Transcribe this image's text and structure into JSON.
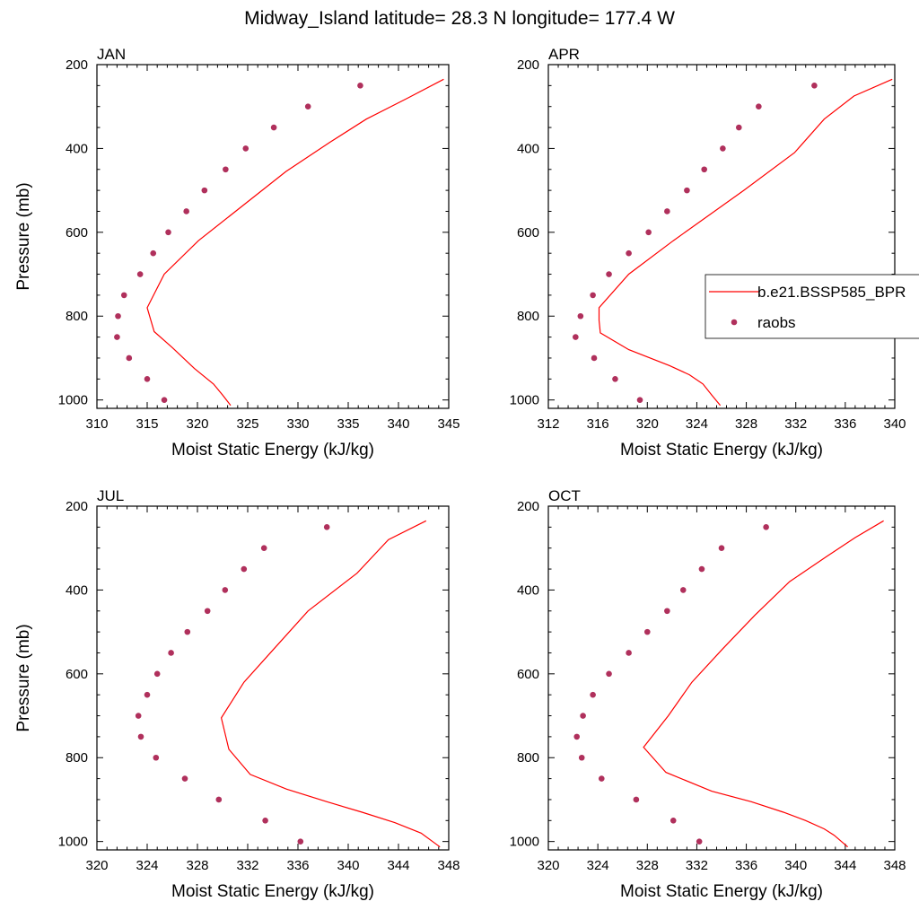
{
  "figure": {
    "title": "Midway_Island  latitude= 28.3 N longitude= 177.4 W"
  },
  "colors": {
    "model": "#ff0000",
    "obs": "#b0305c",
    "axes": "#000000"
  },
  "legend": {
    "placement": "right, inside APR panel (clipped at image edge)",
    "model_label": "b.e21.BSSP585_BPR",
    "obs_label": "raobs"
  },
  "chart_data": [
    {
      "type": "line",
      "panel_label": "JAN",
      "xlabel": "Moist Static Energy (kJ/kg)",
      "ylabel": "Pressure (mb)",
      "xlim": [
        310,
        345
      ],
      "xticks": [
        310,
        315,
        320,
        325,
        330,
        335,
        340,
        345
      ],
      "ylim": [
        1020,
        200
      ],
      "yticks": [
        200,
        400,
        600,
        800,
        1000
      ],
      "grid": false,
      "series": [
        {
          "name": "b.e21.BSSP585_BPR",
          "kind": "line",
          "x": [
            323.3,
            322.5,
            321.6,
            319.7,
            317.5,
            315.7,
            315.0,
            316.7,
            320.1,
            328.8,
            333.2,
            336.8,
            340.9,
            344.5
          ],
          "y": [
            1013,
            988,
            962,
            925,
            875,
            837,
            780,
            700,
            620,
            455,
            385,
            330,
            280,
            235
          ]
        },
        {
          "name": "raobs",
          "kind": "scatter",
          "x": [
            316.7,
            315.0,
            313.2,
            312.0,
            312.1,
            312.7,
            314.3,
            315.6,
            317.1,
            318.9,
            320.7,
            322.8,
            324.8,
            327.6,
            331.0,
            336.2
          ],
          "y": [
            1000,
            950,
            900,
            850,
            800,
            750,
            700,
            650,
            600,
            550,
            500,
            450,
            400,
            350,
            300,
            250
          ]
        }
      ]
    },
    {
      "type": "line",
      "panel_label": "APR",
      "xlabel": "Moist Static Energy (kJ/kg)",
      "ylabel": "",
      "xlim": [
        312,
        340
      ],
      "xticks": [
        312,
        316,
        320,
        324,
        328,
        332,
        336,
        340
      ],
      "ylim": [
        1020,
        200
      ],
      "yticks": [
        200,
        400,
        600,
        800,
        1000
      ],
      "grid": false,
      "series": [
        {
          "name": "b.e21.BSSP585_BPR",
          "kind": "line",
          "x": [
            325.9,
            325.2,
            324.5,
            323.4,
            321.8,
            318.5,
            316.2,
            316.1,
            316.1,
            318.5,
            322.1,
            327.8,
            331.9,
            334.3,
            336.7,
            339.8
          ],
          "y": [
            1013,
            988,
            962,
            940,
            918,
            880,
            840,
            810,
            780,
            700,
            620,
            500,
            410,
            330,
            275,
            235
          ]
        },
        {
          "name": "raobs",
          "kind": "scatter",
          "x": [
            319.4,
            317.4,
            315.7,
            314.2,
            314.6,
            315.6,
            316.9,
            318.5,
            320.1,
            321.6,
            323.2,
            324.6,
            326.1,
            327.4,
            329.0,
            333.5
          ],
          "y": [
            1000,
            950,
            900,
            850,
            800,
            750,
            700,
            650,
            600,
            550,
            500,
            450,
            400,
            350,
            300,
            250
          ]
        }
      ]
    },
    {
      "type": "line",
      "panel_label": "JUL",
      "xlabel": "Moist Static Energy (kJ/kg)",
      "ylabel": "Pressure (mb)",
      "xlim": [
        320,
        348
      ],
      "xticks": [
        320,
        324,
        328,
        332,
        336,
        340,
        344,
        348
      ],
      "ylim": [
        1020,
        200
      ],
      "yticks": [
        200,
        400,
        600,
        800,
        1000
      ],
      "grid": false,
      "series": [
        {
          "name": "b.e21.BSSP585_BPR",
          "kind": "line",
          "x": [
            347.3,
            345.8,
            343.7,
            341.1,
            338.3,
            335.1,
            332.2,
            330.5,
            329.9,
            331.7,
            334.1,
            336.8,
            340.7,
            343.2,
            346.2
          ],
          "y": [
            1013,
            980,
            955,
            930,
            905,
            875,
            840,
            780,
            705,
            620,
            540,
            450,
            360,
            280,
            235
          ]
        },
        {
          "name": "raobs",
          "kind": "scatter",
          "x": [
            336.2,
            333.4,
            329.7,
            327.0,
            324.7,
            323.5,
            323.3,
            324.0,
            324.8,
            325.9,
            327.2,
            328.8,
            330.2,
            331.7,
            333.3,
            338.3
          ],
          "y": [
            1000,
            950,
            900,
            850,
            800,
            750,
            700,
            650,
            600,
            550,
            500,
            450,
            400,
            350,
            300,
            250
          ]
        }
      ]
    },
    {
      "type": "line",
      "panel_label": "OCT",
      "xlabel": "Moist Static Energy (kJ/kg)",
      "ylabel": "",
      "xlim": [
        320,
        348
      ],
      "xticks": [
        320,
        324,
        328,
        332,
        336,
        340,
        344,
        348
      ],
      "ylim": [
        1020,
        200
      ],
      "yticks": [
        200,
        400,
        600,
        800,
        1000
      ],
      "grid": false,
      "series": [
        {
          "name": "b.e21.BSSP585_BPR",
          "kind": "line",
          "x": [
            344.2,
            343.1,
            342.3,
            340.8,
            339.0,
            336.4,
            333.2,
            329.5,
            327.7,
            329.7,
            331.6,
            334.1,
            336.7,
            339.5,
            342.5,
            344.8,
            347.1
          ],
          "y": [
            1013,
            985,
            970,
            950,
            930,
            905,
            880,
            835,
            775,
            700,
            620,
            540,
            460,
            380,
            320,
            275,
            235
          ]
        },
        {
          "name": "raobs",
          "kind": "scatter",
          "x": [
            332.2,
            330.1,
            327.1,
            324.3,
            322.7,
            322.3,
            322.8,
            323.6,
            324.9,
            326.5,
            328.0,
            329.6,
            330.9,
            332.4,
            334.0,
            337.6
          ],
          "y": [
            1000,
            950,
            900,
            850,
            800,
            750,
            700,
            650,
            600,
            550,
            500,
            450,
            400,
            350,
            300,
            250
          ]
        }
      ]
    }
  ]
}
